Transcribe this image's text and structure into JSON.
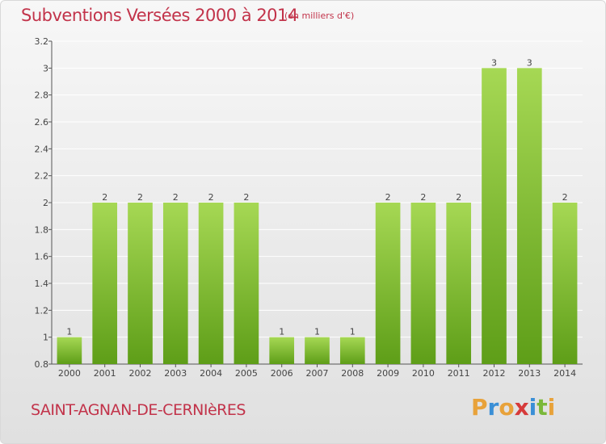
{
  "title": "Subventions Versées 2000 à 2014",
  "subtitle": "(en milliers d'€)",
  "commune": "SAINT-AGNAN-DE-CERNIèRES",
  "logo": {
    "text": "Proxiti",
    "letters": [
      {
        "char": "P",
        "color": "#e8a23a"
      },
      {
        "char": "r",
        "color": "#3a8fd6"
      },
      {
        "char": "o",
        "color": "#e8a23a"
      },
      {
        "char": "x",
        "color": "#d63a3a"
      },
      {
        "char": "i",
        "color": "#3a8fd6"
      },
      {
        "char": "t",
        "color": "#7ab83a"
      },
      {
        "char": "i",
        "color": "#e8a23a"
      }
    ]
  },
  "colors": {
    "title": "#c2334a",
    "bar_light": "#a6d854",
    "bar_dark": "#5e9e18",
    "grid": "#ffffff"
  },
  "chart_data": {
    "type": "bar",
    "title": "Subventions Versées 2000 à 2014",
    "subtitle": "(en milliers d'€)",
    "xlabel": "",
    "ylabel": "",
    "categories": [
      "2000",
      "2001",
      "2002",
      "2003",
      "2004",
      "2005",
      "2006",
      "2007",
      "2008",
      "2009",
      "2010",
      "2011",
      "2012",
      "2013",
      "2014"
    ],
    "values": [
      1,
      2,
      2,
      2,
      2,
      2,
      1,
      1,
      1,
      2,
      2,
      2,
      3,
      3,
      2
    ],
    "data_labels": [
      "1",
      "2",
      "2",
      "2",
      "2",
      "2",
      "1",
      "1",
      "1",
      "2",
      "2",
      "2",
      "3",
      "3",
      "2"
    ],
    "ylim": [
      0.8,
      3.2
    ],
    "yticks": [
      "0.8",
      "1",
      "1.2",
      "1.4",
      "1.6",
      "1.8",
      "2",
      "2.2",
      "2.4",
      "2.6",
      "2.8",
      "3",
      "3.2"
    ],
    "ytick_values": [
      0.8,
      1,
      1.2,
      1.4,
      1.6,
      1.8,
      2,
      2.2,
      2.4,
      2.6,
      2.8,
      3,
      3.2
    ],
    "grid": true,
    "legend": "none"
  }
}
